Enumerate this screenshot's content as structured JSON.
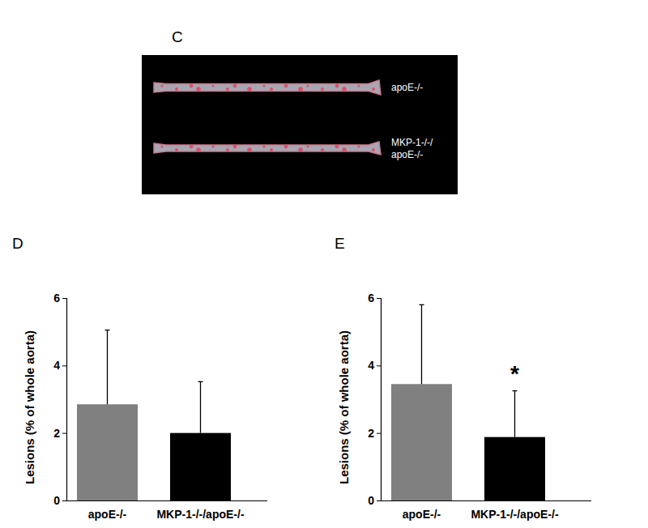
{
  "image_panel": {
    "title": "C",
    "labels": [
      [
        "apoE-/-"
      ],
      [
        "MKP-1-/-/",
        "apoE-/-"
      ]
    ]
  },
  "chart_data": [
    {
      "type": "bar",
      "title": "D",
      "y_label": "Lesions (% of whole aorta)",
      "categories": [
        "apoE-/-",
        "MKP-1-/-/apoE-/-"
      ],
      "values": [
        2.85,
        2.0
      ],
      "errors": [
        2.2,
        1.52
      ],
      "colors": [
        "#808080",
        "#000000"
      ],
      "ylim": [
        0,
        6
      ],
      "yticks": [
        0,
        2,
        4,
        6
      ]
    },
    {
      "type": "bar",
      "title": "E",
      "y_label": "Lesions (% of whole aorta)",
      "categories": [
        "apoE-/-",
        "MKP-1-/-/apoE-/-"
      ],
      "values": [
        3.45,
        1.88
      ],
      "errors": [
        2.35,
        1.37
      ],
      "colors": [
        "#808080",
        "#000000"
      ],
      "ylim": [
        0,
        6
      ],
      "yticks": [
        0,
        2,
        4,
        6
      ],
      "annotations": [
        {
          "text": "*",
          "x": "MKP-1-/-/apoE-/-"
        }
      ]
    }
  ]
}
